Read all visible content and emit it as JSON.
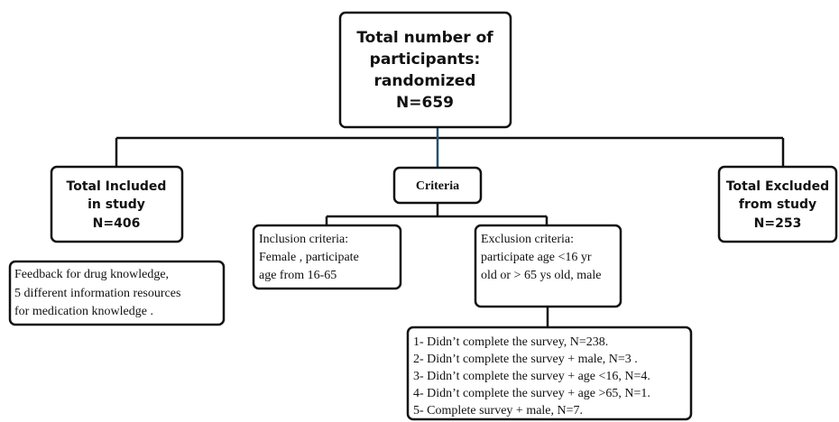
{
  "nodes": [
    {
      "lines": [
        "Total number of",
        "participants:",
        "randomized",
        "N=659"
      ]
    },
    {
      "lines": [
        "Total Included",
        "in study",
        "N=406"
      ]
    },
    {
      "lines": [
        "Criteria"
      ]
    },
    {
      "lines": [
        "Total Excluded",
        "from study",
        "N=253"
      ]
    },
    {
      "lines": [
        "Feedback for drug knowledge,",
        "5 different information resources",
        "for medication knowledge ."
      ]
    },
    {
      "lines": [
        "Inclusion criteria:",
        "Female , participate",
        "age from 16-65"
      ]
    },
    {
      "lines": [
        "Exclusion criteria:",
        "participate age <16 yr",
        "old or > 65 ys old, male"
      ]
    },
    {
      "lines": [
        "1- Didn’t complete the survey, N=238.",
        "2- Didn’t complete the survey + male, N=3 .",
        "3- Didn’t complete the survey + age <16, N=4.",
        "4- Didn’t complete the survey + age >65, N=1.",
        "5- Complete survey + male, N=7."
      ]
    }
  ]
}
